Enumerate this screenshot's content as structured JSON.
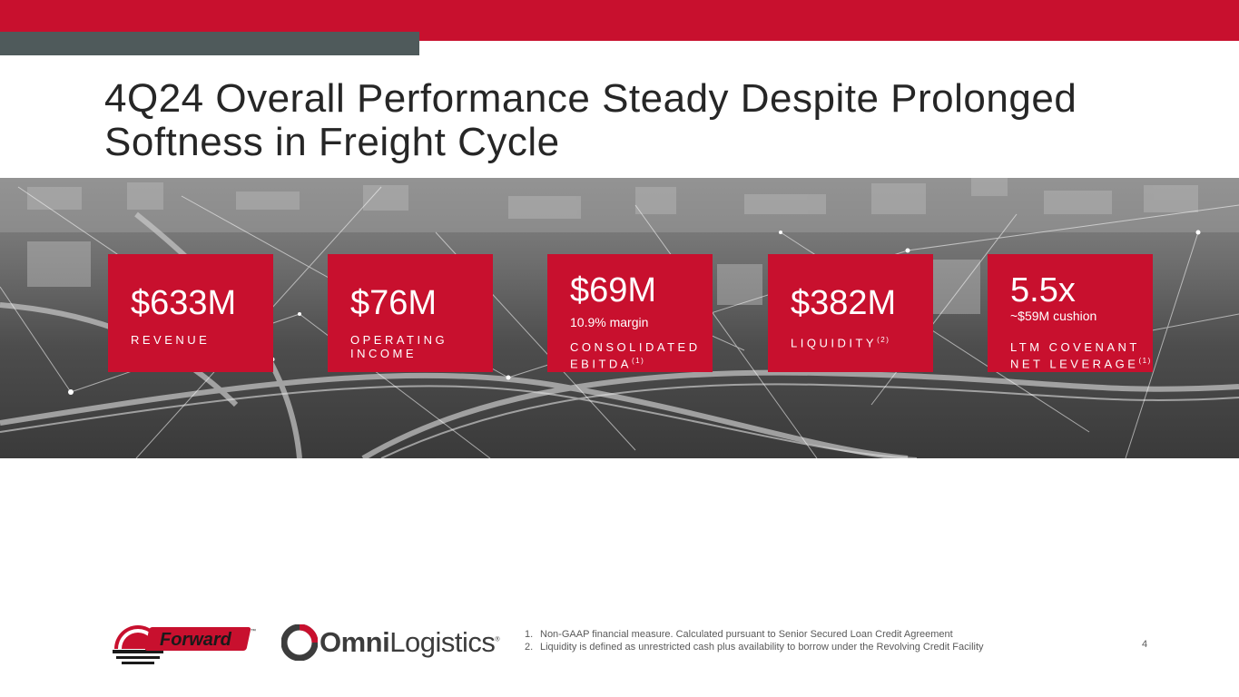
{
  "header": {
    "title_line1": "4Q24 Overall Performance Steady Despite Prolonged",
    "title_line2": "Softness in Freight Cycle"
  },
  "colors": {
    "brand_red": "#c8102e",
    "accent_gray": "#4f5a5b"
  },
  "kpis": [
    {
      "value": "$633M",
      "sub": "",
      "label_line1": "REVENUE",
      "label_line2": "",
      "note": ""
    },
    {
      "value": "$76M",
      "sub": "",
      "label_line1": "OPERATING",
      "label_line2": "INCOME",
      "note": ""
    },
    {
      "value": "$69M",
      "sub": "10.9% margin",
      "label_line1": "CONSOLIDATED",
      "label_line2": "EBITDA",
      "note": "(1)"
    },
    {
      "value": "$382M",
      "sub": "",
      "label_line1": "LIQUIDITY",
      "label_line2": "",
      "note": "(2)"
    },
    {
      "value": "5.5x",
      "sub": "~$59M cushion",
      "label_line1": "LTM COVENANT",
      "label_line2": "NET LEVERAGE",
      "note": "(1)"
    }
  ],
  "footnotes": [
    {
      "num": "1.",
      "text": "Non-GAAP financial measure. Calculated pursuant to Senior Secured Loan Credit Agreement"
    },
    {
      "num": "2.",
      "text": "Liquidity is defined as unrestricted cash plus availability to borrow under the Revolving Credit Facility"
    }
  ],
  "page_number": "4",
  "logos": {
    "forward": {
      "text": "Forward",
      "mark": "™"
    },
    "omni": {
      "bold": "Omni",
      "light": "Logistics",
      "mark": "®"
    }
  }
}
